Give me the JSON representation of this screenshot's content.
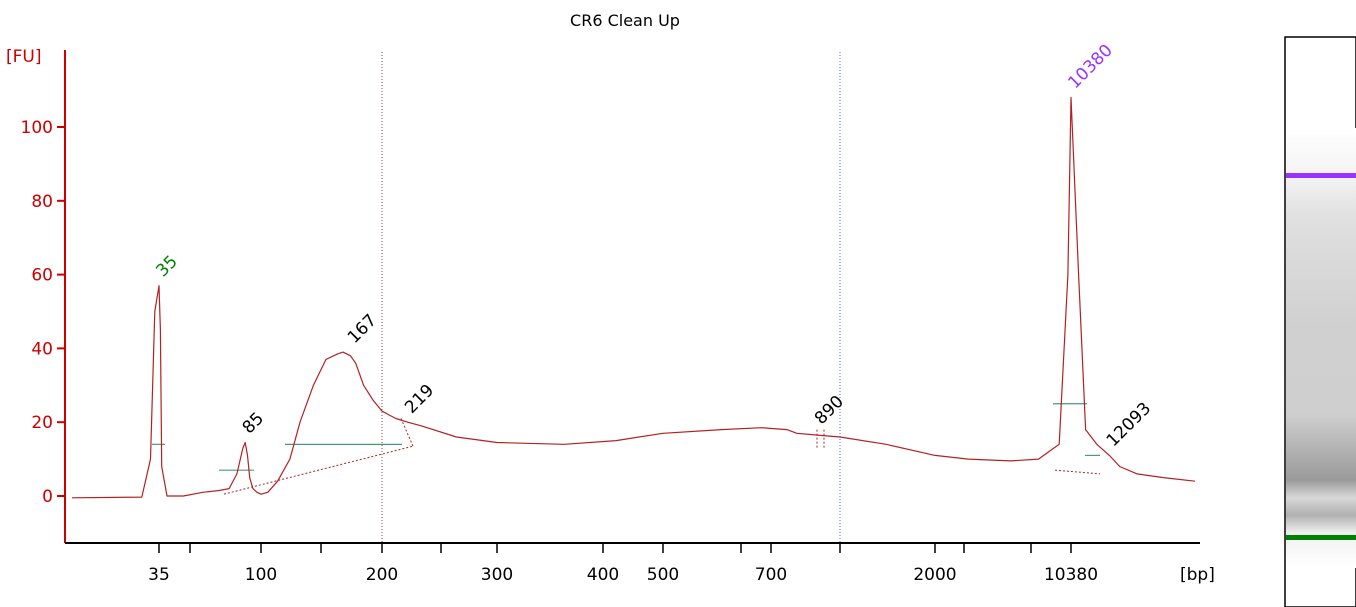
{
  "chart_data": {
    "type": "line",
    "title": "CR6 Clean Up",
    "ylabel": "[FU]",
    "xlabel": "[bp]",
    "ylim": [
      -12,
      118
    ],
    "y_ticks": [
      0,
      20,
      40,
      60,
      80,
      100
    ],
    "x_tick_labels": [
      "35",
      "100",
      "200",
      "300",
      "400",
      "500",
      "700",
      "2000",
      "10380"
    ],
    "x_scale": "non-linear (electrophoresis size ladder)",
    "grid": false,
    "legend": "none",
    "series": [
      {
        "x": [
          26,
          33,
          34,
          34.5,
          35,
          35.5,
          36,
          38,
          45,
          55,
          65,
          72,
          78,
          83,
          85,
          87,
          89,
          92,
          96,
          100,
          104,
          110,
          118,
          125,
          135,
          145,
          155,
          160,
          167,
          172,
          180,
          190,
          200,
          210,
          219,
          230,
          260,
          300,
          360,
          420,
          500,
          600,
          680,
          760,
          800,
          890,
          1000,
          1400,
          2000,
          3000,
          5000,
          7000,
          9000,
          10000,
          10380,
          10700,
          11000,
          11500,
          12093,
          12600,
          13500,
          15000,
          17000
        ],
        "y": [
          -0.5,
          -0.3,
          10,
          50,
          57,
          45,
          8,
          0,
          0,
          1,
          1.5,
          2,
          6,
          13,
          14.5,
          11,
          5,
          2,
          1,
          0.5,
          1,
          4,
          10,
          20,
          30,
          37,
          38.5,
          39,
          38,
          36,
          30,
          26,
          23,
          21,
          20,
          19,
          16,
          14.5,
          14,
          15,
          17,
          18,
          18.5,
          18,
          17,
          16.5,
          16,
          14,
          11,
          10,
          9.5,
          10,
          14,
          60,
          108,
          60,
          18,
          14,
          11,
          8,
          6,
          5,
          4
        ]
      }
    ],
    "peaks": [
      {
        "label": "35",
        "x": 35,
        "y": 57,
        "color": "#008000"
      },
      {
        "label": "85",
        "x": 85,
        "y": 14.5,
        "color": "#000000"
      },
      {
        "label": "167",
        "x": 167,
        "y": 39,
        "color": "#000000"
      },
      {
        "label": "219",
        "x": 219,
        "y": 20,
        "color": "#000000"
      },
      {
        "label": "890",
        "x": 890,
        "y": 17,
        "color": "#000000"
      },
      {
        "label": "10380",
        "x": 10380,
        "y": 108,
        "color": "#9933ff"
      },
      {
        "label": "12093",
        "x": 12093,
        "y": 11,
        "color": "#000000"
      }
    ],
    "colors": {
      "trace": "#b22222",
      "axis": "#cc0000",
      "lower_marker": "#008000",
      "upper_marker": "#9933ff",
      "region_line": "#4a9a7a"
    }
  }
}
